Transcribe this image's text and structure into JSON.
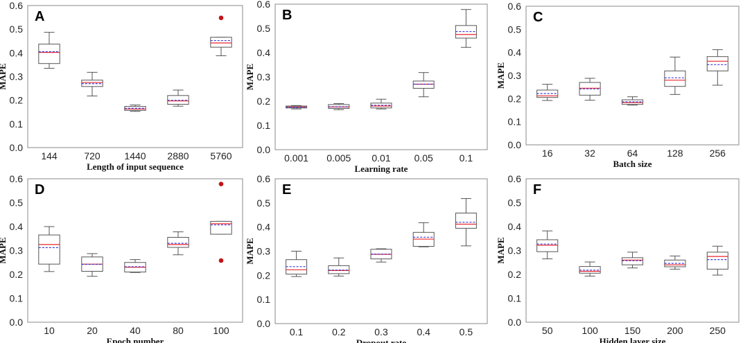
{
  "colors": {
    "median": "#e8262b",
    "mean": "#3a3ad8",
    "box": "#555555",
    "outlier": "#c41418",
    "frame": "#888888"
  },
  "chart_data": [
    {
      "type": "box",
      "panel": "A",
      "xlabel": "Length of input sequence",
      "ylabel": "MAPE",
      "ylim": [
        0,
        0.6
      ],
      "yticks": [
        "0.0",
        "0.1",
        "0.2",
        "0.3",
        "0.4",
        "0.5",
        "0.6"
      ],
      "categories": [
        "144",
        "720",
        "1440",
        "2880",
        "5760"
      ],
      "boxes": [
        {
          "whislo": 0.335,
          "q1": 0.355,
          "med": 0.402,
          "mean": 0.405,
          "q3": 0.437,
          "whishi": 0.487,
          "fliers": []
        },
        {
          "whislo": 0.218,
          "q1": 0.258,
          "med": 0.275,
          "mean": 0.27,
          "q3": 0.285,
          "whishi": 0.318,
          "fliers": []
        },
        {
          "whislo": 0.153,
          "q1": 0.157,
          "med": 0.163,
          "mean": 0.166,
          "q3": 0.174,
          "whishi": 0.18,
          "fliers": []
        },
        {
          "whislo": 0.175,
          "q1": 0.183,
          "med": 0.197,
          "mean": 0.2,
          "q3": 0.22,
          "whishi": 0.243,
          "fliers": []
        },
        {
          "whislo": 0.388,
          "q1": 0.424,
          "med": 0.442,
          "mean": 0.452,
          "q3": 0.466,
          "whishi": 0.466,
          "fliers": [
            0.548
          ]
        }
      ]
    },
    {
      "type": "box",
      "panel": "B",
      "xlabel": "Learning rate",
      "ylabel": "MAPE",
      "ylim": [
        0,
        0.6
      ],
      "yticks": [
        "0.0",
        "0.1",
        "0.2",
        "0.3",
        "0.4",
        "0.5",
        "0.6"
      ],
      "categories": [
        "0.001",
        "0.005",
        "0.01",
        "0.05",
        "0.1"
      ],
      "boxes": [
        {
          "whislo": 0.168,
          "q1": 0.172,
          "med": 0.176,
          "mean": 0.175,
          "q3": 0.18,
          "whishi": 0.182,
          "fliers": []
        },
        {
          "whislo": 0.165,
          "q1": 0.17,
          "med": 0.176,
          "mean": 0.177,
          "q3": 0.186,
          "whishi": 0.19,
          "fliers": []
        },
        {
          "whislo": 0.168,
          "q1": 0.172,
          "med": 0.18,
          "mean": 0.183,
          "q3": 0.192,
          "whishi": 0.208,
          "fliers": []
        },
        {
          "whislo": 0.218,
          "q1": 0.253,
          "med": 0.27,
          "mean": 0.27,
          "q3": 0.283,
          "whishi": 0.318,
          "fliers": []
        },
        {
          "whislo": 0.422,
          "q1": 0.46,
          "med": 0.475,
          "mean": 0.487,
          "q3": 0.512,
          "whishi": 0.578,
          "fliers": []
        }
      ]
    },
    {
      "type": "box",
      "panel": "C",
      "xlabel": "Batch size",
      "ylabel": "MAPE",
      "ylim": [
        0,
        0.6
      ],
      "yticks": [
        "0.0",
        "0.1",
        "0.2",
        "0.3",
        "0.4",
        "0.5",
        "0.6"
      ],
      "categories": [
        "16",
        "32",
        "64",
        "128",
        "256"
      ],
      "boxes": [
        {
          "whislo": 0.192,
          "q1": 0.205,
          "med": 0.212,
          "mean": 0.222,
          "q3": 0.237,
          "whishi": 0.262,
          "fliers": []
        },
        {
          "whislo": 0.193,
          "q1": 0.215,
          "med": 0.245,
          "mean": 0.242,
          "q3": 0.27,
          "whishi": 0.288,
          "fliers": []
        },
        {
          "whislo": 0.172,
          "q1": 0.175,
          "med": 0.183,
          "mean": 0.186,
          "q3": 0.195,
          "whishi": 0.208,
          "fliers": []
        },
        {
          "whislo": 0.218,
          "q1": 0.253,
          "med": 0.28,
          "mean": 0.29,
          "q3": 0.32,
          "whishi": 0.38,
          "fliers": []
        },
        {
          "whislo": 0.258,
          "q1": 0.32,
          "med": 0.362,
          "mean": 0.347,
          "q3": 0.382,
          "whishi": 0.412,
          "fliers": []
        }
      ]
    },
    {
      "type": "box",
      "panel": "D",
      "xlabel": "Epoch number",
      "ylabel": "MAPE",
      "ylim": [
        0,
        0.6
      ],
      "yticks": [
        "0.0",
        "0.1",
        "0.2",
        "0.3",
        "0.4",
        "0.5",
        "0.6"
      ],
      "categories": [
        "10",
        "20",
        "40",
        "80",
        "100"
      ],
      "boxes": [
        {
          "whislo": 0.212,
          "q1": 0.243,
          "med": 0.325,
          "mean": 0.312,
          "q3": 0.365,
          "whishi": 0.4,
          "fliers": []
        },
        {
          "whislo": 0.192,
          "q1": 0.213,
          "med": 0.243,
          "mean": 0.242,
          "q3": 0.273,
          "whishi": 0.287,
          "fliers": []
        },
        {
          "whislo": 0.208,
          "q1": 0.21,
          "med": 0.23,
          "mean": 0.232,
          "q3": 0.25,
          "whishi": 0.262,
          "fliers": []
        },
        {
          "whislo": 0.282,
          "q1": 0.313,
          "med": 0.325,
          "mean": 0.33,
          "q3": 0.355,
          "whishi": 0.378,
          "fliers": []
        },
        {
          "whislo": 0.368,
          "q1": 0.368,
          "med": 0.412,
          "mean": 0.407,
          "q3": 0.422,
          "whishi": 0.422,
          "fliers": [
            0.578,
            0.258
          ]
        }
      ]
    },
    {
      "type": "box",
      "panel": "E",
      "xlabel": "Dropout rate",
      "ylabel": "MAPE",
      "ylim": [
        0,
        0.6
      ],
      "yticks": [
        "0.0",
        "0.1",
        "0.2",
        "0.3",
        "0.4",
        "0.5",
        "0.6"
      ],
      "categories": [
        "0.1",
        "0.2",
        "0.3",
        "0.4",
        "0.5"
      ],
      "boxes": [
        {
          "whislo": 0.195,
          "q1": 0.205,
          "med": 0.223,
          "mean": 0.236,
          "q3": 0.265,
          "whishi": 0.3,
          "fliers": []
        },
        {
          "whislo": 0.197,
          "q1": 0.207,
          "med": 0.22,
          "mean": 0.222,
          "q3": 0.24,
          "whishi": 0.272,
          "fliers": []
        },
        {
          "whislo": 0.255,
          "q1": 0.268,
          "med": 0.287,
          "mean": 0.288,
          "q3": 0.308,
          "whishi": 0.31,
          "fliers": []
        },
        {
          "whislo": 0.318,
          "q1": 0.32,
          "med": 0.35,
          "mean": 0.358,
          "q3": 0.378,
          "whishi": 0.418,
          "fliers": []
        },
        {
          "whislo": 0.322,
          "q1": 0.395,
          "med": 0.412,
          "mean": 0.42,
          "q3": 0.458,
          "whishi": 0.518,
          "fliers": []
        }
      ]
    },
    {
      "type": "box",
      "panel": "F",
      "xlabel": "Hidden layer size",
      "ylabel": "MAPE",
      "ylim": [
        0,
        0.6
      ],
      "yticks": [
        "0.0",
        "0.1",
        "0.2",
        "0.3",
        "0.4",
        "0.5",
        "0.6"
      ],
      "categories": [
        "50",
        "100",
        "150",
        "200",
        "250"
      ],
      "boxes": [
        {
          "whislo": 0.265,
          "q1": 0.295,
          "med": 0.322,
          "mean": 0.327,
          "q3": 0.345,
          "whishi": 0.382,
          "fliers": []
        },
        {
          "whislo": 0.193,
          "q1": 0.205,
          "med": 0.213,
          "mean": 0.218,
          "q3": 0.233,
          "whishi": 0.252,
          "fliers": []
        },
        {
          "whislo": 0.227,
          "q1": 0.24,
          "med": 0.26,
          "mean": 0.257,
          "q3": 0.27,
          "whishi": 0.293,
          "fliers": []
        },
        {
          "whislo": 0.222,
          "q1": 0.232,
          "med": 0.24,
          "mean": 0.246,
          "q3": 0.26,
          "whishi": 0.277,
          "fliers": []
        },
        {
          "whislo": 0.197,
          "q1": 0.222,
          "med": 0.275,
          "mean": 0.262,
          "q3": 0.293,
          "whishi": 0.318,
          "fliers": []
        }
      ]
    }
  ]
}
